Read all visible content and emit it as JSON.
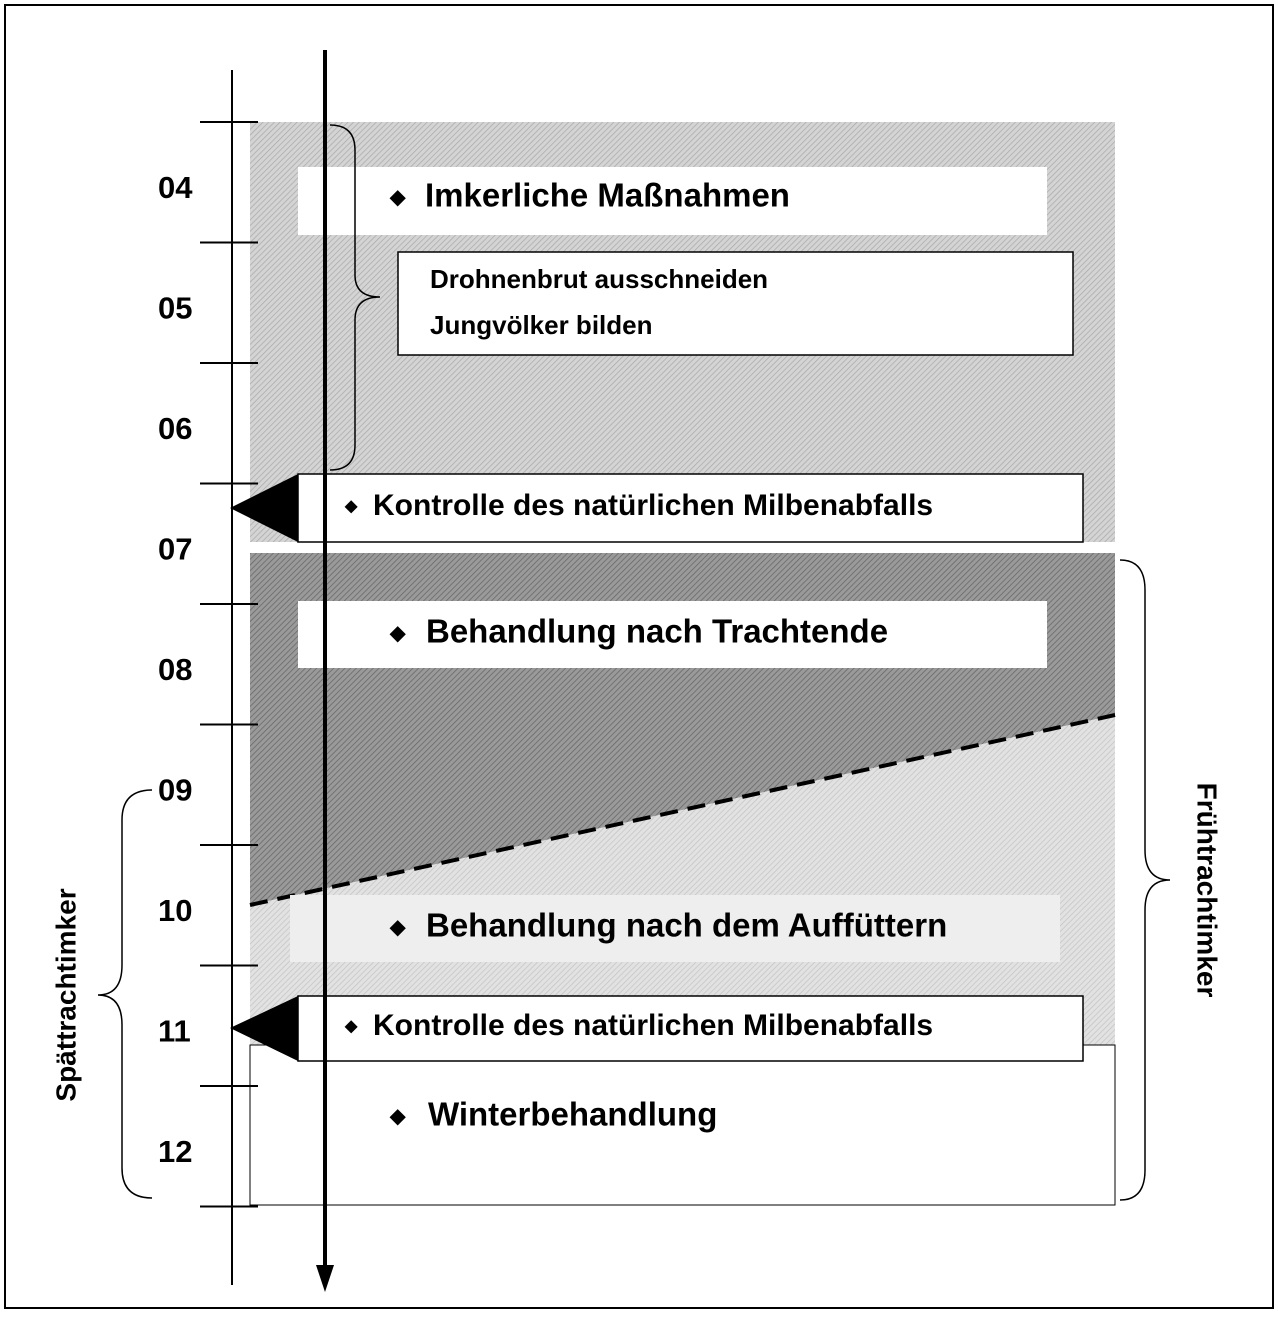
{
  "months": [
    "04",
    "05",
    "06",
    "07",
    "08",
    "09",
    "10",
    "11",
    "12"
  ],
  "measures": {
    "title": "Imkerliche Maßnahmen",
    "items": [
      "Drohnenbrut ausschneiden",
      "Jungvölker bilden"
    ]
  },
  "controls": [
    "Kontrolle des natürlichen Milbenabfalls",
    "Kontrolle des natürlichen Milbenabfalls"
  ],
  "treatments": [
    "Behandlung nach Trachtende",
    "Behandlung nach dem Auffüttern",
    "Winterbehandlung"
  ],
  "groups": {
    "early": "Frühtrachtimker",
    "late": "Spättrachtimker"
  }
}
